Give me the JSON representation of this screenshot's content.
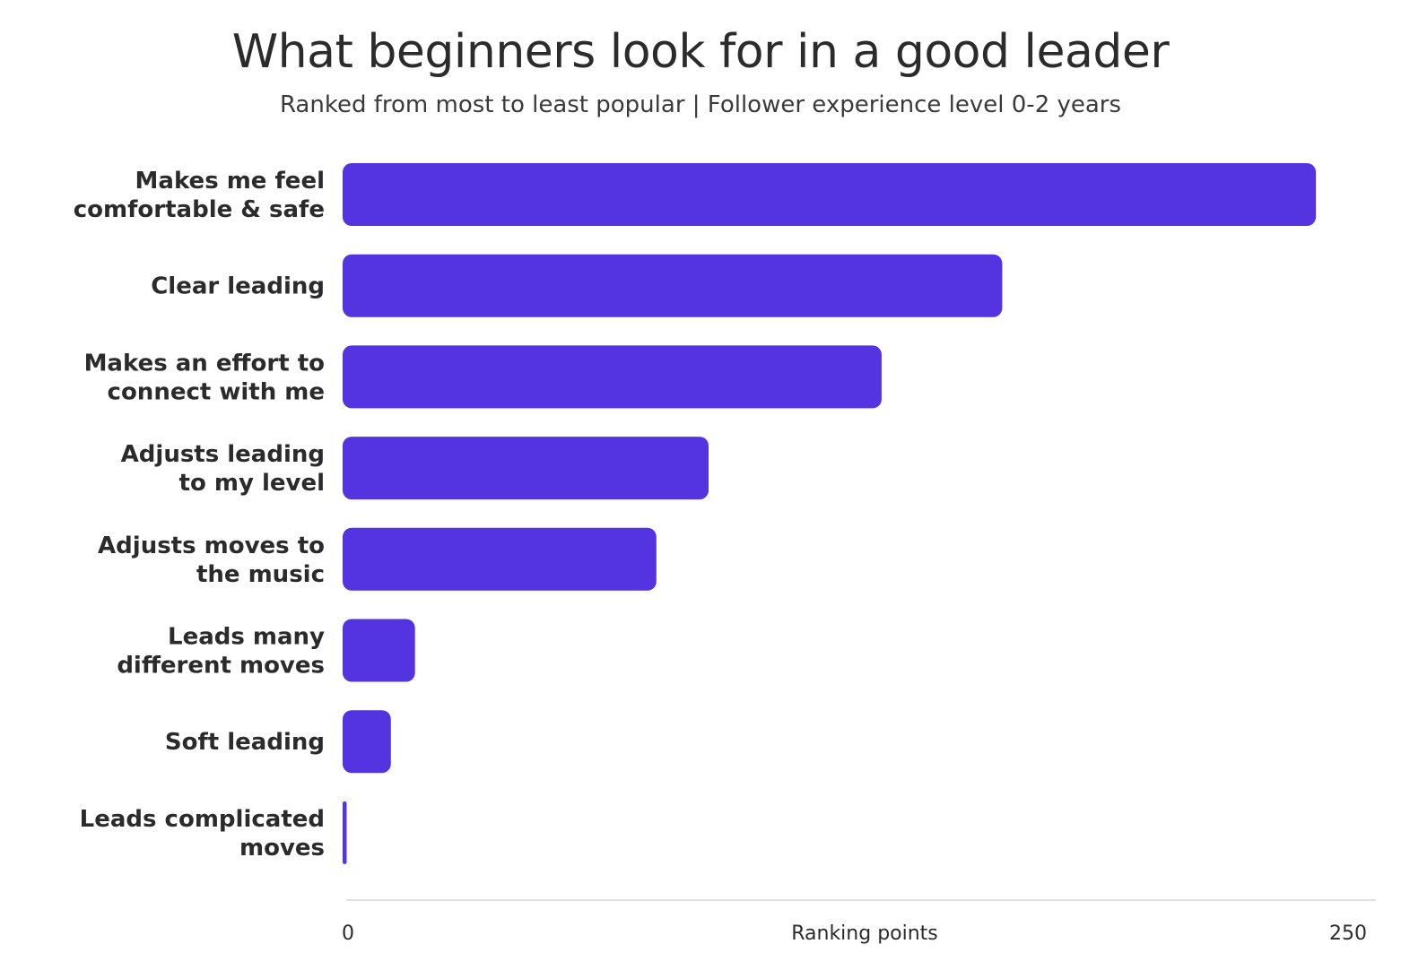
{
  "chart_data": {
    "type": "bar",
    "orientation": "horizontal",
    "title": "What beginners look for in a good leader",
    "subtitle": "Ranked from most to least popular | Follower experience level 0-2 years",
    "categories": [
      [
        "Makes me feel",
        "comfortable & safe"
      ],
      [
        "Clear leading"
      ],
      [
        "Makes an effort to",
        "connect with me"
      ],
      [
        "Adjusts leading",
        "to my level"
      ],
      [
        "Adjusts moves to",
        "the music"
      ],
      [
        "Leads many",
        "different moves"
      ],
      [
        "Soft leading"
      ],
      [
        "Leads complicated",
        "moves"
      ]
    ],
    "values": [
      242,
      164,
      134,
      91,
      78,
      18,
      12,
      1
    ],
    "xlabel": "Ranking points",
    "xlim": [
      0,
      250
    ],
    "xticks": [
      "0",
      "250"
    ],
    "bar_color": "#5433E1",
    "grid": false
  }
}
